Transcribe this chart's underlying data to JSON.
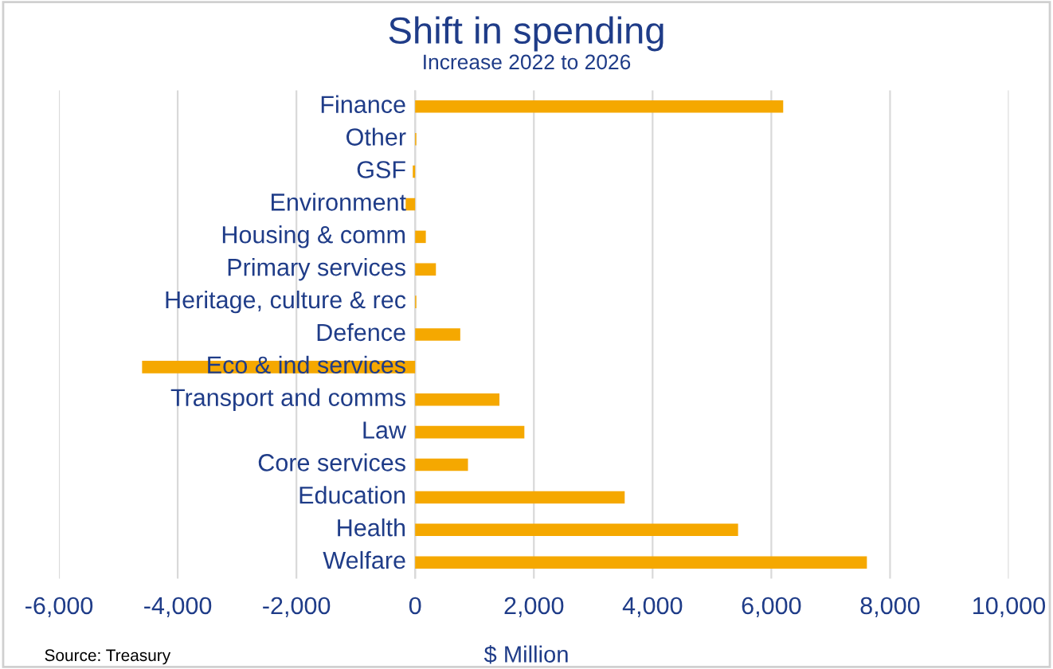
{
  "chart_data": {
    "type": "bar",
    "orientation": "horizontal",
    "title": "Shift in spending",
    "subtitle": "Increase 2022 to 2026",
    "xlabel": "$ Million",
    "categories": [
      "Finance",
      "Other",
      "GSF",
      "Environment",
      "Housing & comm",
      "Primary services",
      "Heritage, culture & rec",
      "Defence",
      "Eco & ind services",
      "Transport and comms",
      "Law",
      "Core services",
      "Education",
      "Health",
      "Welfare"
    ],
    "values": [
      6200,
      20,
      -40,
      -160,
      180,
      350,
      20,
      760,
      -4600,
      1420,
      1840,
      890,
      3530,
      5440,
      7610
    ],
    "color": "#f5a800",
    "xlim": [
      -6000,
      10000
    ],
    "xticks": [
      {
        "value": -6000,
        "label": "-6,000"
      },
      {
        "value": -4000,
        "label": "-4,000"
      },
      {
        "value": -2000,
        "label": "-2,000"
      },
      0,
      {
        "value": 2000,
        "label": "2,000"
      },
      {
        "value": 4000,
        "label": "4,000"
      },
      {
        "value": 6000,
        "label": "6,000"
      },
      {
        "value": 8000,
        "label": "8,000"
      },
      {
        "value": 10000,
        "label": "10,000"
      }
    ],
    "grid": "x",
    "legend": false,
    "annotations": [
      "Source: Treasury"
    ]
  }
}
